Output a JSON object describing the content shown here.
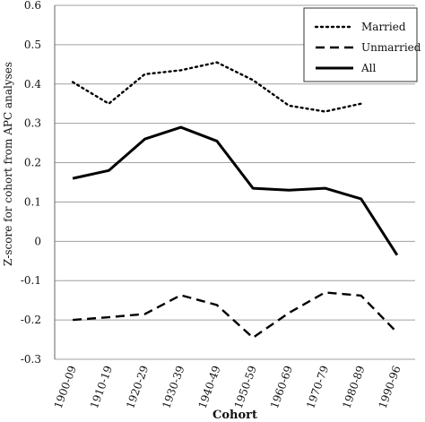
{
  "chart_data": {
    "type": "line",
    "title": "",
    "xlabel": "Cohort",
    "ylabel": "Z-score for cohort from APC analyses",
    "categories": [
      "1900-09",
      "1910-19",
      "1920-29",
      "1930-39",
      "1940-49",
      "1950-59",
      "1960-69",
      "1970-79",
      "1980-89",
      "1990-96"
    ],
    "ylim": [
      -0.3,
      0.6
    ],
    "yticks": [
      "0.6",
      "0.5",
      "0.4",
      "0.3",
      "0.2",
      "0.1",
      "0",
      "-0.1",
      "-0.2",
      "-0.3"
    ],
    "grid": true,
    "legend_position": "top-right",
    "series": [
      {
        "name": "Married",
        "style": "dotted",
        "values": [
          0.405,
          0.35,
          0.425,
          0.435,
          0.455,
          0.41,
          0.345,
          0.33,
          0.35,
          null
        ]
      },
      {
        "name": "Unmarried",
        "style": "dashed",
        "values": [
          -0.2,
          -0.193,
          -0.185,
          -0.137,
          -0.162,
          -0.245,
          -0.182,
          -0.13,
          -0.138,
          -0.232
        ]
      },
      {
        "name": "All",
        "style": "solid",
        "values": [
          0.16,
          0.18,
          0.26,
          0.29,
          0.255,
          0.135,
          0.13,
          0.135,
          0.108,
          -0.035
        ]
      }
    ],
    "colors": {
      "line": "#000000",
      "grid": "#a0a0a0",
      "axis": "#666666"
    }
  }
}
